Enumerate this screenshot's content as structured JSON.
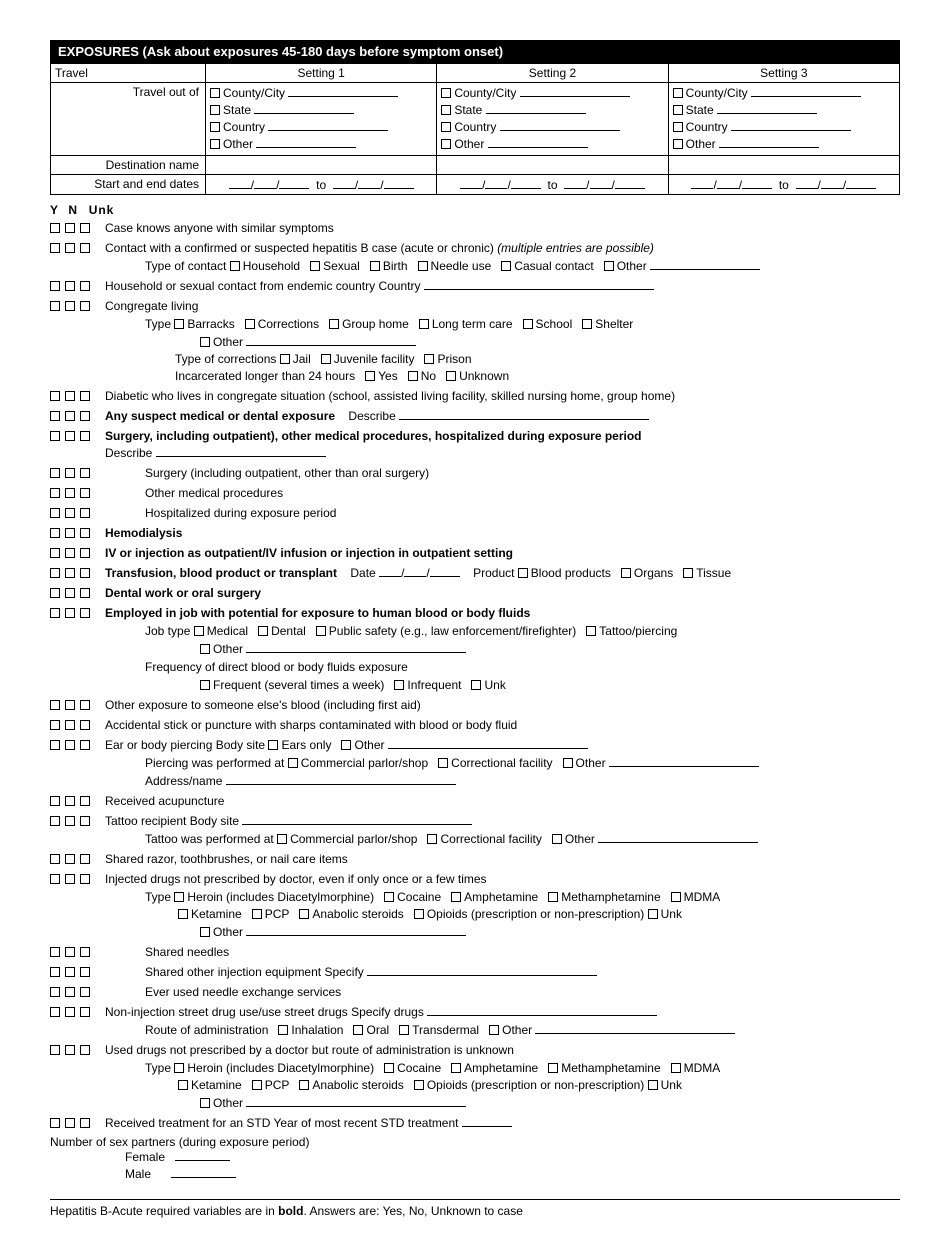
{
  "header": "EXPOSURES (Ask about exposures 45-180 days before symptom onset)",
  "travel": {
    "rowTravel": "Travel",
    "col1": "Setting 1",
    "col2": "Setting 2",
    "col3": "Setting 3",
    "rowOutOf": "Travel out of",
    "county": "County/City",
    "state": "State",
    "country": "Country",
    "other": "Other",
    "rowDest": "Destination name",
    "rowDates": "Start and end dates",
    "to": "to"
  },
  "ynu": {
    "y": "Y",
    "n": "N",
    "u": "Unk"
  },
  "q": {
    "similar": "Case knows anyone with similar symptoms",
    "contact": "Contact with a confirmed or suspected hepatitis B case (acute or chronic) ",
    "contact_it": "(multiple entries are possible)",
    "typeContact": "Type of contact",
    "household": "Household",
    "sexual": "Sexual",
    "birth": "Birth",
    "needle": "Needle use",
    "casual": "Casual contact",
    "other": "Other",
    "endemic": "Household or sexual contact from endemic country    Country",
    "congregate": "Congregate living",
    "type": "Type",
    "barracks": "Barracks",
    "corrections": "Corrections",
    "grouphome": "Group home",
    "longterm": "Long term care",
    "school": "School",
    "shelter": "Shelter",
    "typecorr": "Type of corrections",
    "jail": "Jail",
    "juv": "Juvenile facility",
    "prison": "Prison",
    "incarc": "Incarcerated longer than 24 hours",
    "yes": "Yes",
    "no": "No",
    "unknown": "Unknown",
    "diabetic": "Diabetic who lives in congregate situation (school, assisted living facility, skilled nursing home, group home)",
    "suspect": "Any suspect medical or dental exposure",
    "describe": "Describe",
    "surgery": "Surgery, including outpatient), other medical procedures, hospitalized during exposure period",
    "surgery2": "Surgery (including outpatient, other than oral surgery)",
    "othermed": "Other medical procedures",
    "hosp": "Hospitalized during exposure period",
    "hemo": "Hemodialysis",
    "iv": "IV or injection as outpatient/IV infusion or injection in outpatient setting",
    "transfusion": "Transfusion, blood product or transplant",
    "date": "Date",
    "product": "Product",
    "blood": "Blood products",
    "organs": "Organs",
    "tissue": "Tissue",
    "dental": "Dental work or oral surgery",
    "employed": "Employed in job with potential for exposure to human blood or body fluids",
    "jobtype": "Job type",
    "medical": "Medical",
    "dentalj": "Dental",
    "publicsafety": "Public safety (e.g., law enforcement/firefighter)",
    "tattoop": "Tattoo/piercing",
    "freq": "Frequency of direct blood or body fluids exposure",
    "frequent": "Frequent (several times a week)",
    "infreq": "Infrequent",
    "unk": "Unk",
    "otherexp": "Other exposure to someone else's blood (including first aid)",
    "stick": "Accidental stick or puncture with sharps contaminated with blood or body fluid",
    "ear": "Ear or body piercing    Body site",
    "ears": "Ears only",
    "pierceat": "Piercing was performed at",
    "commercial": "Commercial parlor/shop",
    "corrfac": "Correctional facility",
    "address": "Address/name",
    "acu": "Received acupuncture",
    "tattoo": "Tattoo recipient    Body site",
    "tattooat": "Tattoo was performed at",
    "razor": "Shared razor, toothbrushes, or nail care items",
    "injected": "Injected drugs not prescribed by doctor, even if only once or a few times",
    "heroin": "Heroin (includes Diacetylmorphine)",
    "cocaine": "Cocaine",
    "amph": "Amphetamine",
    "meth": "Methamphetamine",
    "mdma": "MDMA",
    "ketamine": "Ketamine",
    "pcp": "PCP",
    "steroids": "Anabolic steroids",
    "opioids": "Opioids (prescription or non-prescription)",
    "sharedneedles": "Shared needles",
    "sharedother": "Shared other injection equipment    Specify",
    "exchange": "Ever used needle exchange services",
    "nonij": "Non-injection street drug use/use street drugs    Specify drugs",
    "route": "Route of administration",
    "inhal": "Inhalation",
    "oral": "Oral",
    "trans": "Transdermal",
    "useddrugs": "Used drugs not prescribed by a doctor but route of administration is unknown",
    "std": "Received treatment for an STD    Year of most recent STD treatment",
    "numpartners": "Number of sex partners (during exposure period)",
    "female": "Female",
    "male": "Male"
  },
  "footer": "Hepatitis B-Acute required variables are in <b>bold</b>.  Answers are: Yes, No, Unknown to case"
}
